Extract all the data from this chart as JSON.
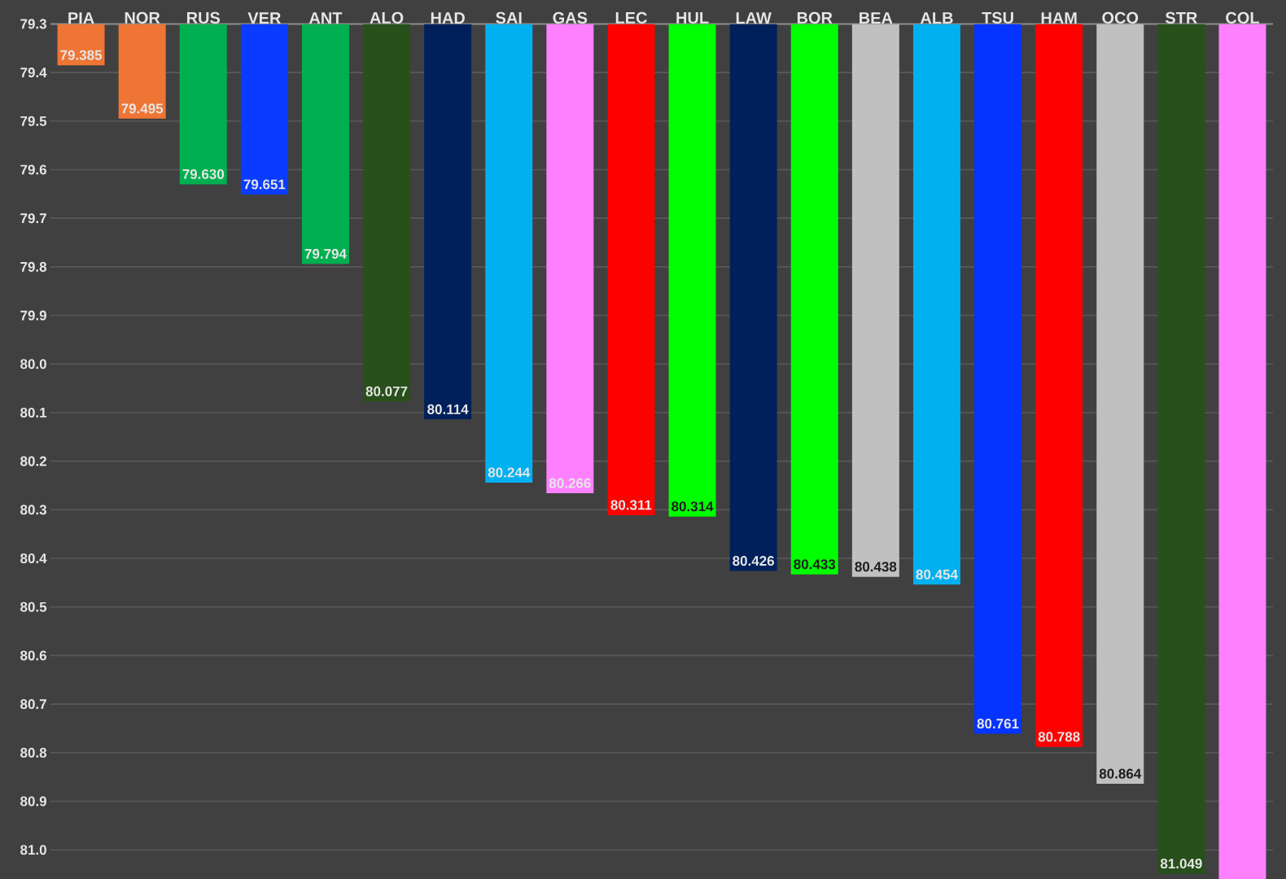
{
  "chart_data": {
    "type": "bar",
    "categories": [
      "PIA",
      "NOR",
      "RUS",
      "VER",
      "ANT",
      "ALO",
      "HAD",
      "SAI",
      "GAS",
      "LEC",
      "HUL",
      "LAW",
      "BOR",
      "BEA",
      "ALB",
      "TSU",
      "HAM",
      "OCO",
      "STR",
      "COL"
    ],
    "values": [
      79.385,
      79.495,
      79.63,
      79.651,
      79.794,
      80.077,
      80.114,
      80.244,
      80.266,
      80.311,
      80.314,
      80.426,
      80.433,
      80.438,
      80.454,
      80.761,
      80.788,
      80.864,
      81.049,
      81.06
    ],
    "value_labels": [
      "79.385",
      "79.495",
      "79.630",
      "79.651",
      "79.794",
      "80.077",
      "80.114",
      "80.244",
      "80.266",
      "80.311",
      "80.314",
      "80.426",
      "80.433",
      "80.438",
      "80.454",
      "80.761",
      "80.788",
      "80.864",
      "81.049",
      null
    ],
    "colors": [
      "#ef7535",
      "#ef7535",
      "#00b050",
      "#0a3cff",
      "#00b050",
      "#27501a",
      "#00205b",
      "#00b0f0",
      "#ff80ff",
      "#ff0000",
      "#00ff00",
      "#00205b",
      "#00ff00",
      "#c0c0c0",
      "#00b0f0",
      "#0533ff",
      "#ff0000",
      "#c0c0c0",
      "#27501a",
      "#ff80ff"
    ],
    "ylim": [
      81.06,
      79.3
    ],
    "yticks": [
      79.3,
      79.4,
      79.5,
      79.6,
      79.7,
      79.8,
      79.9,
      {
        "value": 80,
        "label": "80.0"
      },
      80.1,
      80.2,
      80.3,
      80.4,
      80.5,
      80.6,
      80.7,
      80.8,
      80.9,
      {
        "value": 81,
        "label": "81.0"
      }
    ],
    "grid": "y"
  }
}
